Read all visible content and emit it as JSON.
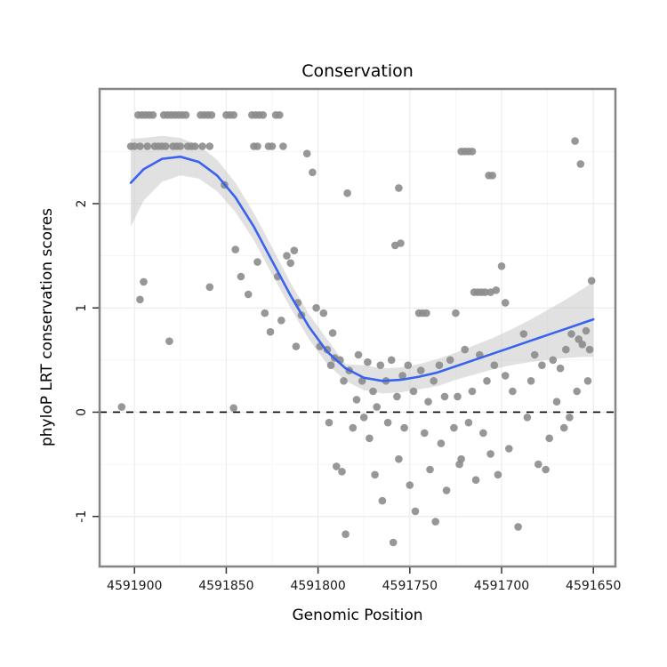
{
  "chart_data": {
    "type": "scatter",
    "title": "Conservation",
    "xlabel": "Genomic Position",
    "ylabel": "phyloP LRT conservation scores",
    "x_axis_reversed": true,
    "x_domain": [
      4591919,
      4591638
    ],
    "y_domain": [
      -1.48,
      3.1
    ],
    "x_ticks": [
      4591900,
      4591850,
      4591800,
      4591750,
      4591700,
      4591650
    ],
    "y_ticks": [
      -1,
      0,
      1,
      2
    ],
    "grid": true,
    "legend": "none",
    "hline": {
      "y": 0,
      "style": "dashed",
      "color": "#000000"
    },
    "colors": {
      "point": "#8c8c8c",
      "smooth_line": "#3a62f0",
      "confidence_band": "#c4c4c4",
      "panel_border": "#858585",
      "grid_major": "#ececec",
      "grid_minor": "#f5f5f5"
    },
    "points": [
      [
        4591898,
        2.85
      ],
      [
        4591896,
        2.85
      ],
      [
        4591894,
        2.85
      ],
      [
        4591892,
        2.85
      ],
      [
        4591890,
        2.85
      ],
      [
        4591884,
        2.85
      ],
      [
        4591882,
        2.85
      ],
      [
        4591880,
        2.85
      ],
      [
        4591878,
        2.85
      ],
      [
        4591876,
        2.85
      ],
      [
        4591874,
        2.85
      ],
      [
        4591872,
        2.85
      ],
      [
        4591864,
        2.85
      ],
      [
        4591862,
        2.85
      ],
      [
        4591860,
        2.85
      ],
      [
        4591858,
        2.85
      ],
      [
        4591850,
        2.85
      ],
      [
        4591848,
        2.85
      ],
      [
        4591846,
        2.85
      ],
      [
        4591836,
        2.85
      ],
      [
        4591834,
        2.85
      ],
      [
        4591832,
        2.85
      ],
      [
        4591830,
        2.85
      ],
      [
        4591823,
        2.85
      ],
      [
        4591821,
        2.85
      ],
      [
        4591902,
        2.55
      ],
      [
        4591900,
        2.55
      ],
      [
        4591897,
        2.55
      ],
      [
        4591893,
        2.55
      ],
      [
        4591889,
        2.55
      ],
      [
        4591887,
        2.55
      ],
      [
        4591885,
        2.55
      ],
      [
        4591883,
        2.55
      ],
      [
        4591879,
        2.55
      ],
      [
        4591877,
        2.55
      ],
      [
        4591875,
        2.55
      ],
      [
        4591871,
        2.55
      ],
      [
        4591869,
        2.55
      ],
      [
        4591867,
        2.55
      ],
      [
        4591863,
        2.55
      ],
      [
        4591859,
        2.55
      ],
      [
        4591835,
        2.55
      ],
      [
        4591833,
        2.55
      ],
      [
        4591827,
        2.55
      ],
      [
        4591825,
        2.55
      ],
      [
        4591819,
        2.55
      ],
      [
        4591851,
        2.18
      ],
      [
        4591806,
        2.48
      ],
      [
        4591803,
        2.3
      ],
      [
        4591784,
        2.1
      ],
      [
        4591756,
        2.15
      ],
      [
        4591755,
        1.62
      ],
      [
        4591722,
        2.5
      ],
      [
        4591720,
        2.5
      ],
      [
        4591718,
        2.5
      ],
      [
        4591716,
        2.5
      ],
      [
        4591707,
        2.27
      ],
      [
        4591705,
        2.27
      ],
      [
        4591660,
        2.6
      ],
      [
        4591657,
        2.38
      ],
      [
        4591715,
        1.15
      ],
      [
        4591713,
        1.15
      ],
      [
        4591711,
        1.15
      ],
      [
        4591709,
        1.15
      ],
      [
        4591706,
        1.15
      ],
      [
        4591703,
        1.17
      ],
      [
        4591700,
        1.4
      ],
      [
        4591698,
        1.05
      ],
      [
        4591907,
        0.05
      ],
      [
        4591897,
        1.08
      ],
      [
        4591895,
        1.25
      ],
      [
        4591881,
        0.68
      ],
      [
        4591859,
        1.2
      ],
      [
        4591846,
        0.04
      ],
      [
        4591845,
        1.56
      ],
      [
        4591842,
        1.3
      ],
      [
        4591838,
        1.13
      ],
      [
        4591833,
        1.44
      ],
      [
        4591829,
        0.95
      ],
      [
        4591826,
        0.77
      ],
      [
        4591822,
        1.3
      ],
      [
        4591820,
        0.88
      ],
      [
        4591817,
        1.5
      ],
      [
        4591815,
        1.43
      ],
      [
        4591813,
        1.55
      ],
      [
        4591811,
        1.05
      ],
      [
        4591809,
        0.93
      ],
      [
        4591812,
        0.63
      ],
      [
        4591801,
        1.0
      ],
      [
        4591799,
        0.63
      ],
      [
        4591797,
        0.95
      ],
      [
        4591795,
        0.6
      ],
      [
        4591793,
        0.45
      ],
      [
        4591792,
        0.76
      ],
      [
        4591791,
        0.52
      ],
      [
        4591794,
        -0.1
      ],
      [
        4591790,
        -0.52
      ],
      [
        4591787,
        -0.57
      ],
      [
        4591785,
        -1.17
      ],
      [
        4591783,
        0.4
      ],
      [
        4591781,
        -0.15
      ],
      [
        4591779,
        0.12
      ],
      [
        4591788,
        0.5
      ],
      [
        4591786,
        0.3
      ],
      [
        4591778,
        0.55
      ],
      [
        4591776,
        0.3
      ],
      [
        4591775,
        -0.05
      ],
      [
        4591773,
        0.48
      ],
      [
        4591772,
        -0.25
      ],
      [
        4591770,
        0.2
      ],
      [
        4591769,
        -0.6
      ],
      [
        4591768,
        0.05
      ],
      [
        4591766,
        0.45
      ],
      [
        4591765,
        -0.85
      ],
      [
        4591763,
        0.3
      ],
      [
        4591762,
        -0.1
      ],
      [
        4591760,
        0.5
      ],
      [
        4591759,
        -1.25
      ],
      [
        4591757,
        0.15
      ],
      [
        4591756,
        -0.45
      ],
      [
        4591754,
        0.35
      ],
      [
        4591753,
        -0.15
      ],
      [
        4591751,
        0.45
      ],
      [
        4591750,
        -0.7
      ],
      [
        4591748,
        0.2
      ],
      [
        4591747,
        -0.95
      ],
      [
        4591745,
        0.95
      ],
      [
        4591743,
        0.95
      ],
      [
        4591741,
        0.95
      ],
      [
        4591744,
        0.4
      ],
      [
        4591742,
        -0.2
      ],
      [
        4591740,
        0.1
      ],
      [
        4591739,
        -0.55
      ],
      [
        4591737,
        0.3
      ],
      [
        4591736,
        -1.05
      ],
      [
        4591734,
        0.45
      ],
      [
        4591733,
        -0.3
      ],
      [
        4591731,
        0.15
      ],
      [
        4591730,
        -0.75
      ],
      [
        4591758,
        1.6
      ],
      [
        4591728,
        0.5
      ],
      [
        4591726,
        -0.15
      ],
      [
        4591725,
        0.95
      ],
      [
        4591723,
        -0.5
      ],
      [
        4591724,
        0.15
      ],
      [
        4591722,
        -0.45
      ],
      [
        4591720,
        0.6
      ],
      [
        4591718,
        -0.1
      ],
      [
        4591716,
        0.2
      ],
      [
        4591714,
        -0.65
      ],
      [
        4591712,
        0.55
      ],
      [
        4591710,
        -0.2
      ],
      [
        4591708,
        0.3
      ],
      [
        4591706,
        -0.4
      ],
      [
        4591704,
        0.45
      ],
      [
        4591702,
        -0.6
      ],
      [
        4591696,
        -0.35
      ],
      [
        4591694,
        0.2
      ],
      [
        4591698,
        0.35
      ],
      [
        4591691,
        -1.1
      ],
      [
        4591686,
        -0.05
      ],
      [
        4591684,
        0.3
      ],
      [
        4591682,
        0.55
      ],
      [
        4591680,
        -0.5
      ],
      [
        4591678,
        0.45
      ],
      [
        4591676,
        -0.55
      ],
      [
        4591674,
        -0.25
      ],
      [
        4591672,
        0.5
      ],
      [
        4591670,
        0.1
      ],
      [
        4591668,
        0.42
      ],
      [
        4591666,
        -0.15
      ],
      [
        4591665,
        0.6
      ],
      [
        4591662,
        0.75
      ],
      [
        4591658,
        0.7
      ],
      [
        4591656,
        0.65
      ],
      [
        4591654,
        0.78
      ],
      [
        4591652,
        0.6
      ],
      [
        4591651,
        1.26
      ],
      [
        4591653,
        0.3
      ],
      [
        4591659,
        0.2
      ],
      [
        4591663,
        -0.05
      ],
      [
        4591688,
        0.75
      ]
    ],
    "smooth": {
      "x": [
        4591902,
        4591895,
        4591885,
        4591875,
        4591865,
        4591855,
        4591845,
        4591835,
        4591825,
        4591815,
        4591805,
        4591795,
        4591785,
        4591775,
        4591765,
        4591755,
        4591745,
        4591735,
        4591725,
        4591715,
        4591705,
        4591695,
        4591685,
        4591675,
        4591665,
        4591655,
        4591650
      ],
      "fit": [
        2.2,
        2.33,
        2.43,
        2.45,
        2.4,
        2.27,
        2.06,
        1.78,
        1.45,
        1.12,
        0.82,
        0.58,
        0.42,
        0.33,
        0.3,
        0.31,
        0.34,
        0.38,
        0.44,
        0.5,
        0.56,
        0.62,
        0.68,
        0.74,
        0.8,
        0.86,
        0.89
      ],
      "lower": [
        1.78,
        2.03,
        2.21,
        2.27,
        2.24,
        2.12,
        1.92,
        1.65,
        1.32,
        1.0,
        0.7,
        0.46,
        0.3,
        0.21,
        0.18,
        0.19,
        0.22,
        0.25,
        0.31,
        0.36,
        0.41,
        0.45,
        0.48,
        0.5,
        0.52,
        0.53,
        0.53
      ],
      "upper": [
        2.62,
        2.63,
        2.65,
        2.63,
        2.56,
        2.42,
        2.2,
        1.91,
        1.58,
        1.24,
        0.94,
        0.7,
        0.46,
        0.45,
        0.42,
        0.43,
        0.46,
        0.51,
        0.57,
        0.64,
        0.71,
        0.79,
        0.88,
        0.98,
        1.08,
        1.19,
        1.25
      ]
    }
  }
}
